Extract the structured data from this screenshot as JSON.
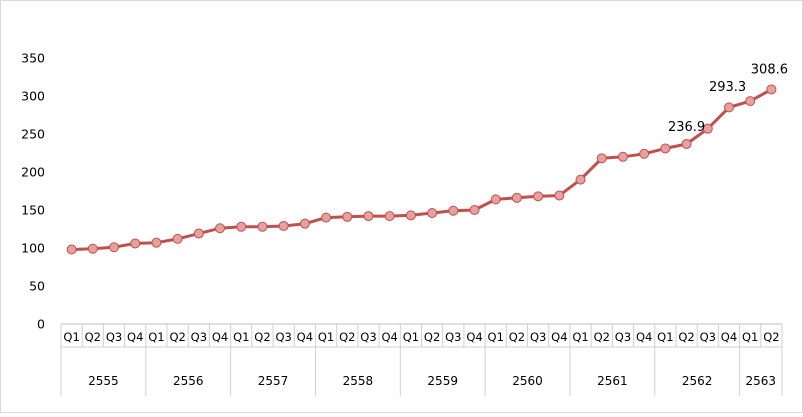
{
  "chart_data": {
    "type": "line",
    "title": "",
    "xlabel": "",
    "ylabel": "",
    "ylim": [
      0,
      350
    ],
    "yticks": [
      "0",
      "50",
      "100",
      "150",
      "200",
      "250",
      "300",
      "350"
    ],
    "grid": false,
    "legend": "none",
    "line_color": "#c0504d",
    "marker_color": "#e6a09e",
    "years": [
      {
        "label": "2555",
        "quarters": [
          "Q1",
          "Q2",
          "Q3",
          "Q4"
        ]
      },
      {
        "label": "2556",
        "quarters": [
          "Q1",
          "Q2",
          "Q3",
          "Q4"
        ]
      },
      {
        "label": "2557",
        "quarters": [
          "Q1",
          "Q2",
          "Q3",
          "Q4"
        ]
      },
      {
        "label": "2558",
        "quarters": [
          "Q1",
          "Q2",
          "Q3",
          "Q4"
        ]
      },
      {
        "label": "2559",
        "quarters": [
          "Q1",
          "Q2",
          "Q3",
          "Q4"
        ]
      },
      {
        "label": "2560",
        "quarters": [
          "Q1",
          "Q2",
          "Q3",
          "Q4"
        ]
      },
      {
        "label": "2561",
        "quarters": [
          "Q1",
          "Q2",
          "Q3",
          "Q4"
        ]
      },
      {
        "label": "2562",
        "quarters": [
          "Q1",
          "Q2",
          "Q3",
          "Q4"
        ]
      },
      {
        "label": "2563",
        "quarters": [
          "Q1",
          "Q2"
        ]
      }
    ],
    "values": [
      98,
      99,
      101,
      106,
      107,
      112,
      119,
      126,
      128,
      128,
      129,
      132,
      140,
      141,
      142,
      142,
      143,
      146,
      149,
      150,
      164,
      166,
      168,
      169,
      190,
      218,
      220,
      224,
      231,
      236.9,
      257,
      285,
      293.3,
      308.6
    ],
    "data_labels": [
      {
        "index": 29,
        "text": "236.9"
      },
      {
        "index": 32,
        "text": "293.3"
      },
      {
        "index": 33,
        "text": "308.6"
      }
    ]
  }
}
